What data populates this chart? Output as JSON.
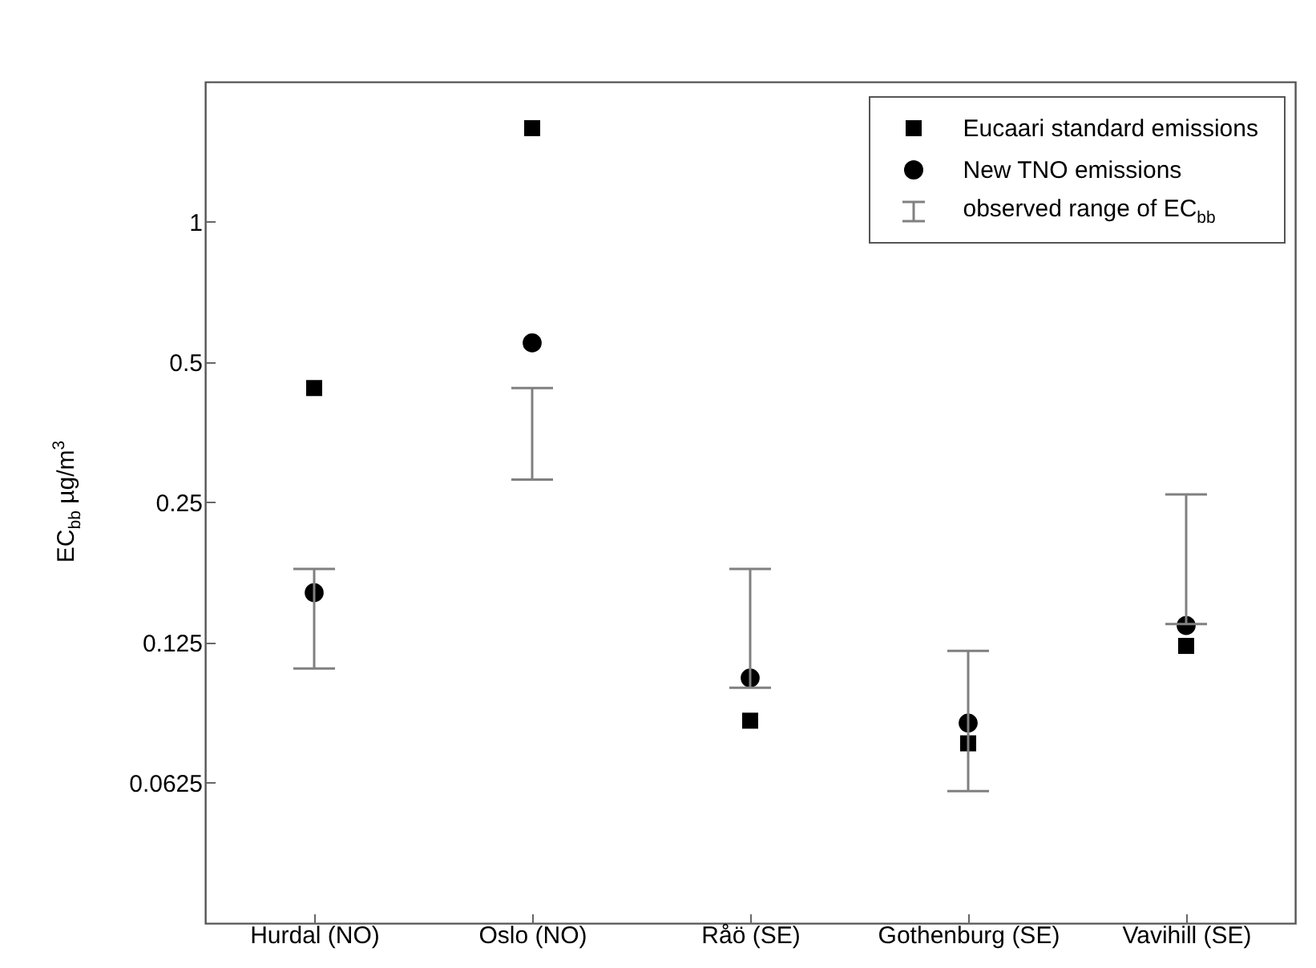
{
  "chart_data": {
    "type": "scatter",
    "ylabel": "EC$_{bb}$ µg/m$^{3}$",
    "categories": [
      "Hurdal (NO)",
      "Oslo (NO)",
      "Råö (SE)",
      "Gothenburg (SE)",
      "Vavihill (SE)"
    ],
    "series": [
      {
        "name": "Eucaari standard emissions",
        "color": "#000000",
        "marker": "square",
        "values": [
          0.44,
          1.59,
          0.085,
          0.076,
          0.123
        ]
      },
      {
        "name": "New TNO emissions",
        "color": "#000000",
        "marker": "circle",
        "values": [
          0.16,
          0.55,
          0.105,
          0.084,
          0.136
        ]
      },
      {
        "name": "observed range of EC$_{bb}$",
        "type": "bar",
        "color": "#808080",
        "base": [
          0.11,
          0.28,
          0.1,
          0.06,
          0.137
        ],
        "values": [
          0.07,
          0.16,
          0.08,
          0.06,
          0.123
        ]
      }
    ],
    "log": true,
    "ylim": [
      0.03125,
      2
    ],
    "yticks": [
      0.0625,
      0.125,
      0.25,
      0.5,
      1
    ],
    "grid": false,
    "legend": "top right"
  }
}
